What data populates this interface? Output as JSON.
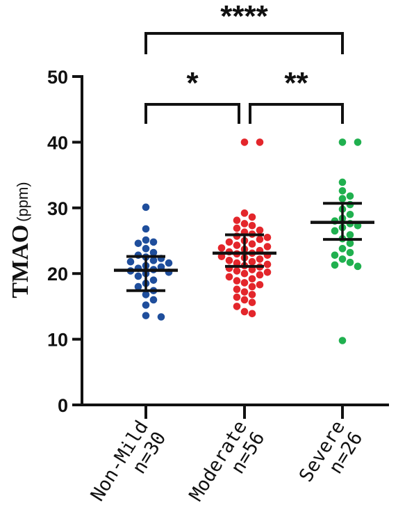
{
  "chart_data": {
    "type": "scatter",
    "ylabel": "TMAO",
    "ylabel_unit": "(ppm)",
    "ylim": [
      0,
      50
    ],
    "yticks": [
      0,
      10,
      20,
      30,
      40,
      50
    ],
    "grid": false,
    "categories": [
      {
        "name": "Non-Mild",
        "n_label": "n=30"
      },
      {
        "name": "Moderate",
        "n_label": "n=56"
      },
      {
        "name": "Severe",
        "n_label": "n=26"
      }
    ],
    "series": [
      {
        "color": "#1f4e9c",
        "median": 20.5,
        "q1": 17.4,
        "q3": 22.6,
        "values": [
          30.1,
          26.8,
          25.1,
          24.8,
          24.6,
          23.8,
          23.2,
          22.8,
          22.5,
          22.3,
          22.0,
          21.8,
          21.6,
          21.2,
          21.0,
          20.8,
          20.6,
          20.4,
          20.2,
          20.0,
          19.6,
          19.0,
          18.5,
          18.0,
          17.4,
          16.8,
          16.0,
          15.2,
          13.6,
          13.4
        ]
      },
      {
        "color": "#e3262b",
        "median": 23.1,
        "q1": 21.1,
        "q3": 25.9,
        "values": [
          40.0,
          40.0,
          29.2,
          28.6,
          28.1,
          27.6,
          27.3,
          26.9,
          26.6,
          26.3,
          26.0,
          25.7,
          25.5,
          25.2,
          25.0,
          24.8,
          24.5,
          24.3,
          24.1,
          23.9,
          23.7,
          23.5,
          23.3,
          23.1,
          23.0,
          22.8,
          22.6,
          22.4,
          22.2,
          22.0,
          21.8,
          21.6,
          21.4,
          21.2,
          21.0,
          20.8,
          20.6,
          20.4,
          20.2,
          20.0,
          19.8,
          19.5,
          19.2,
          18.9,
          18.6,
          18.3,
          18.0,
          17.6,
          17.2,
          16.8,
          16.4,
          16.0,
          15.6,
          15.0,
          14.2,
          13.9
        ]
      },
      {
        "color": "#20b04f",
        "median": 27.8,
        "q1": 25.2,
        "q3": 30.7,
        "values": [
          40.0,
          40.0,
          33.9,
          32.6,
          31.8,
          31.4,
          30.5,
          29.8,
          29.0,
          28.4,
          28.0,
          27.6,
          27.3,
          27.0,
          26.5,
          25.9,
          25.3,
          24.6,
          23.8,
          23.2,
          22.8,
          22.2,
          21.7,
          21.3,
          21.1,
          9.8
        ]
      }
    ],
    "annotations": [
      {
        "label": "****",
        "from": 0,
        "to": 2,
        "level": "top"
      },
      {
        "label": "*",
        "from": 0,
        "to": 1,
        "level": "lower"
      },
      {
        "label": "**",
        "from": 1,
        "to": 2,
        "level": "lower"
      }
    ]
  }
}
